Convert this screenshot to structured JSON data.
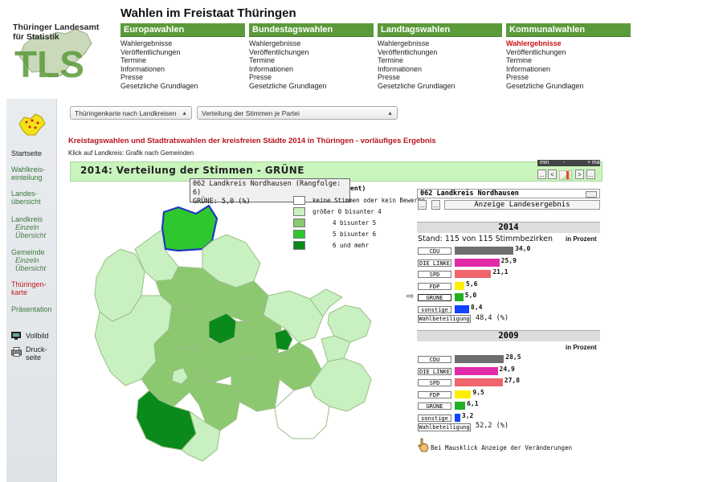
{
  "header": {
    "logo_line1": "Thüringer Landesamt",
    "logo_line2": "für Statistik",
    "logo_text": "TLS",
    "site_title": "Wahlen im Freistaat Thüringen"
  },
  "nav": [
    {
      "title": "Europawahlen",
      "items": [
        "Wahlergebnisse",
        "Veröffentlichungen",
        "Termine",
        "Informationen",
        "Presse",
        "Gesetzliche Grundlagen"
      ]
    },
    {
      "title": "Bundestagswahlen",
      "items": [
        "Wahlergebnisse",
        "Veröffentlichungen",
        "Termine",
        "Informationen",
        "Presse",
        "Gesetzliche Grundlagen"
      ]
    },
    {
      "title": "Landtagswahlen",
      "items": [
        "Wahlergebnisse",
        "Veröffentlichungen",
        "Termine",
        "Informationen",
        "Presse",
        "Gesetzliche Grundlagen"
      ]
    },
    {
      "title": "Kommunalwahlen",
      "items": [
        "Wahlergebnisse",
        "Veröffentlichungen",
        "Termine",
        "Informationen",
        "Presse",
        "Gesetzliche Grundlagen"
      ]
    }
  ],
  "sidebar": {
    "startseite": "Startseite",
    "wahlkreis1": "Wahlkreis-",
    "wahlkreis2": "einteilung",
    "landes1": "Landes-",
    "landes2": "übersicht",
    "landkreis1": "Landkreis",
    "landkreis2": "Einzeln",
    "landkreis3": "Übersicht",
    "gemeinde1": "Gemeinde",
    "gemeinde2": "Einzeln",
    "gemeinde3": "Übersicht",
    "karte1": "Thüringen-",
    "karte2": "karte",
    "praesentation": "Präsentation",
    "vollbild": "Vollbild",
    "druck1": "Druck-",
    "druck2": "seite"
  },
  "toolbar": {
    "select_map": "Thüringenkarte nach Landkreisen",
    "select_view": "Verteilung der Stimmen je Partei"
  },
  "headline": "Kreistagswahlen und Stadtratswahlen der kreisfreien Städte 2014 in Thüringen - vorläufiges Ergebnis",
  "subline": "Klick auf Landkreis: Grafik nach Gemeinden",
  "panel": {
    "title": "2014:  Verteilung der Stimmen - GRÜNE",
    "minmax_min": "min",
    "minmax_dash": "-",
    "minmax_max": "+ ma",
    "btn_dots": "...",
    "btn_prev": "<",
    "btn_next": ">"
  },
  "tooltip": {
    "line1": "062 Landkreis Nordhausen  (Rangfolge: 6)",
    "line2": "GRÜNE: 5,0 (%)"
  },
  "legend": {
    "header_fragment": "ent)",
    "items": [
      {
        "text": "keine Stimmen oder kein Bewerbe",
        "color": "#ffffff"
      },
      {
        "text": "größer 0 bisunter 4",
        "color": "#c8f0c0"
      },
      {
        "text": "4  bisunter 5",
        "color": "#8cc870"
      },
      {
        "text": "5  bisunter 6",
        "color": "#2ec82e"
      },
      {
        "text": "6  und mehr",
        "color": "#0a8a1a"
      }
    ]
  },
  "results": {
    "district": "062 Landkreis Nordhausen",
    "dots1": "...",
    "dots2": "...",
    "landes_button": "Anzeige Landesergebnis",
    "y2014": {
      "year": "2014",
      "stand": "Stand: 115 von 115 Stimmbezirken",
      "unit": "in Prozent",
      "parties": [
        {
          "name": "CDU",
          "value": "34,0",
          "num": 34.0,
          "color": "#6e6e6e"
        },
        {
          "name": "DIE LINKE",
          "value": "25,9",
          "num": 25.9,
          "color": "#e02aa8"
        },
        {
          "name": "SPD",
          "value": "21,1",
          "num": 21.1,
          "color": "#f0646e"
        },
        {
          "name": "FDP",
          "value": "5,6",
          "num": 5.6,
          "color": "#ffee00"
        },
        {
          "name": "GRÜNE",
          "value": "5,0",
          "num": 5.0,
          "color": "#22b022"
        },
        {
          "name": "sonstige",
          "value": "8,4",
          "num": 8.4,
          "color": "#1144ff"
        }
      ],
      "wb_label": "Wahlbeteiligung",
      "wb_value": "48,4 (%)"
    },
    "y2009": {
      "year": "2009",
      "unit": "in Prozent",
      "parties": [
        {
          "name": "CDU",
          "value": "28,5",
          "num": 28.5,
          "color": "#6e6e6e"
        },
        {
          "name": "DIE LINKE",
          "value": "24,9",
          "num": 24.9,
          "color": "#e02aa8"
        },
        {
          "name": "SPD",
          "value": "27,8",
          "num": 27.8,
          "color": "#f0646e"
        },
        {
          "name": "FDP",
          "value": "9,5",
          "num": 9.5,
          "color": "#ffee00"
        },
        {
          "name": "GRÜNE",
          "value": "6,1",
          "num": 6.1,
          "color": "#22b022"
        },
        {
          "name": "sonstige",
          "value": "3,2",
          "num": 3.2,
          "color": "#1144ff"
        }
      ],
      "wb_label": "Wahlbeteiligung",
      "wb_value": "52,2 (%)"
    },
    "hint": "Bei Mausklick Anzeige der Veränderungen"
  }
}
